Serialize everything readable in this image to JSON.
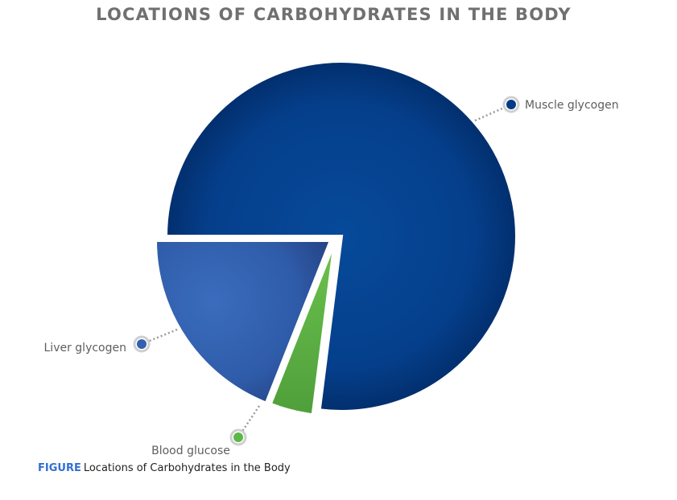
{
  "chart_data": {
    "type": "pie",
    "title": "LOCATIONS OF CARBOHYDRATES IN THE BODY",
    "slices": [
      {
        "label": "Muscle glycogen",
        "value": 77,
        "color": "#043a85"
      },
      {
        "label": "Blood glucose",
        "value": 4,
        "color": "#5cb845"
      },
      {
        "label": "Liver glycogen",
        "value": 19,
        "color": "#3361b0"
      }
    ],
    "legend": "labels beside slices"
  },
  "caption": {
    "tag": "FIGURE",
    "text": "Locations of Carbohydrates in the Body"
  }
}
